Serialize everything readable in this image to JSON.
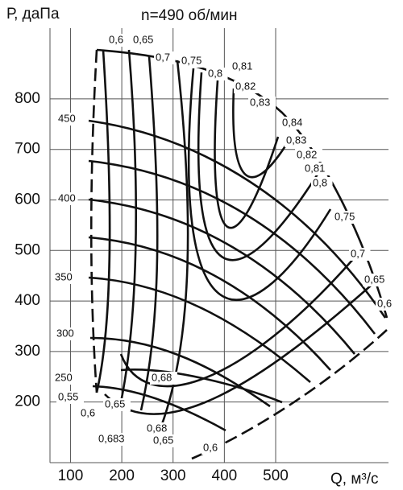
{
  "chart_data": {
    "type": "line",
    "title": "n=490 об/мин",
    "y_label": "Р, даПа",
    "x_label": "Q, м³/с",
    "xlim": [
      60,
      720
    ],
    "ylim": [
      80,
      940
    ],
    "xticks": [
      100,
      200,
      300,
      400,
      500
    ],
    "yticks": [
      200,
      300,
      400,
      500,
      600,
      700,
      800
    ],
    "grid": true,
    "annotations": [
      "0,6",
      "0,65",
      "0,7",
      "0,75",
      "0,8",
      "0,81",
      "0,82",
      "0,83",
      "0,84",
      "0,83",
      "0,82",
      "0,81",
      "0,8",
      "0,75",
      "0,7",
      "0,65",
      "0,6",
      "450",
      "400",
      "350",
      "300",
      "250",
      "0,55",
      "0,6",
      "0,65",
      "0,683",
      "0,68",
      "0,65",
      "0,6",
      "0,68"
    ]
  }
}
